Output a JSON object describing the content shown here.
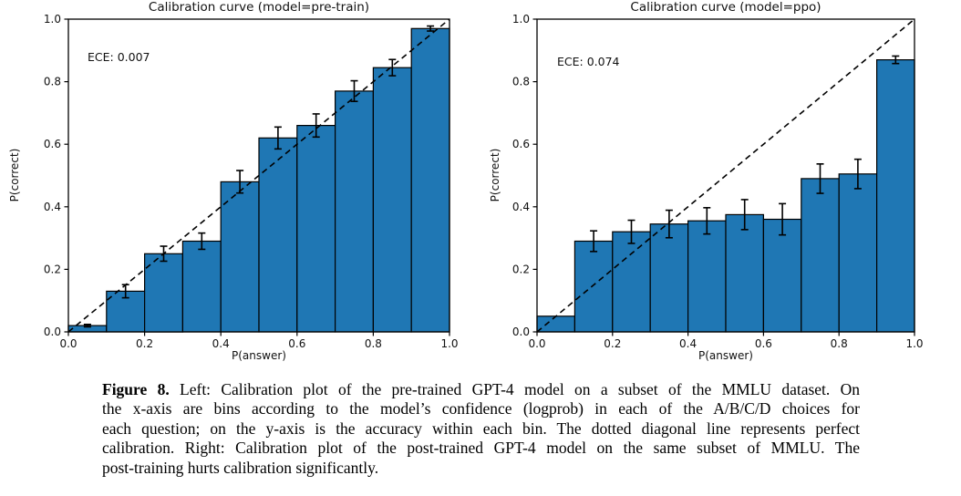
{
  "chart_data": [
    {
      "type": "bar",
      "title": "Calibration curve (model=pre-train)",
      "ece_label": "ECE: 0.007",
      "xlabel": "P(answer)",
      "ylabel": "P(correct)",
      "xlim": [
        0.0,
        1.0
      ],
      "ylim": [
        0.0,
        1.0
      ],
      "bin_edges": [
        0.0,
        0.1,
        0.2,
        0.3,
        0.4,
        0.5,
        0.6,
        0.7,
        0.8,
        0.9,
        1.0
      ],
      "values": [
        0.02,
        0.13,
        0.25,
        0.29,
        0.48,
        0.62,
        0.66,
        0.77,
        0.845,
        0.97
      ],
      "errors": [
        0.004,
        0.021,
        0.024,
        0.026,
        0.036,
        0.035,
        0.037,
        0.033,
        0.026,
        0.008
      ],
      "xticks": [
        "0.0",
        "0.2",
        "0.4",
        "0.6",
        "0.8",
        "1.0"
      ],
      "yticks": [
        "0.0",
        "0.2",
        "0.4",
        "0.6",
        "0.8",
        "1.0"
      ],
      "diagonal": {
        "from": [
          0,
          0
        ],
        "to": [
          1,
          1
        ],
        "style": "dashed",
        "meaning": "perfect calibration"
      },
      "bar_color": "#1f77b4",
      "edge_color": "#000000",
      "errorbar_color": "#000000",
      "grid": false,
      "legend": null
    },
    {
      "type": "bar",
      "title": "Calibration curve (model=ppo)",
      "ece_label": "ECE: 0.074",
      "xlabel": "P(answer)",
      "ylabel": "P(correct)",
      "xlim": [
        0.0,
        1.0
      ],
      "ylim": [
        0.0,
        1.0
      ],
      "bin_edges": [
        0.0,
        0.1,
        0.2,
        0.3,
        0.4,
        0.5,
        0.6,
        0.7,
        0.8,
        0.9,
        1.0
      ],
      "values": [
        0.05,
        0.29,
        0.32,
        0.345,
        0.355,
        0.375,
        0.36,
        0.49,
        0.505,
        0.87
      ],
      "errors": [
        0.0,
        0.033,
        0.037,
        0.044,
        0.042,
        0.048,
        0.05,
        0.047,
        0.047,
        0.012
      ],
      "xticks": [
        "0.0",
        "0.2",
        "0.4",
        "0.6",
        "0.8",
        "1.0"
      ],
      "yticks": [
        "0.0",
        "0.2",
        "0.4",
        "0.6",
        "0.8",
        "1.0"
      ],
      "diagonal": {
        "from": [
          0,
          0
        ],
        "to": [
          1,
          1
        ],
        "style": "dashed",
        "meaning": "perfect calibration"
      },
      "bar_color": "#1f77b4",
      "edge_color": "#000000",
      "errorbar_color": "#000000",
      "grid": false,
      "legend": null
    }
  ],
  "caption": {
    "figure_label": "Figure 8.",
    "lines": [
      "Left: Calibration plot of the pre-trained GPT-4 model on a subset of the MMLU dataset. On",
      "the x-axis are bins according to the model’s confidence (logprob) in each of the A/B/C/D choices for",
      "each question; on the y-axis is the accuracy within each bin. The dotted diagonal line represents perfect",
      "calibration. Right: Calibration plot of the post-trained GPT-4 model on the same subset of MMLU. The",
      "post-training hurts calibration significantly."
    ]
  }
}
